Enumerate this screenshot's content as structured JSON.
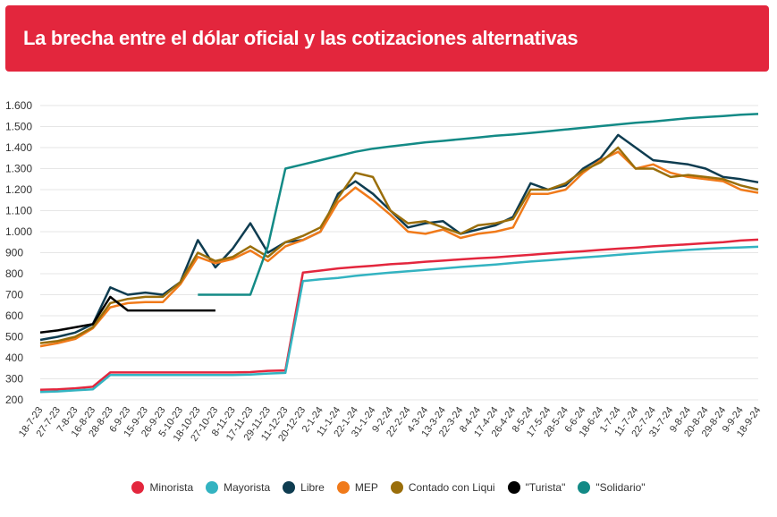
{
  "header": {
    "title": "La brecha entre el dólar oficial y las cotizaciones alternativas"
  },
  "chart_data": {
    "type": "line",
    "title": "La brecha entre el dólar oficial y las cotizaciones alternativas",
    "xlabel": "",
    "ylabel": "",
    "ylim": [
      200,
      1600
    ],
    "yticks": [
      200,
      300,
      400,
      500,
      600,
      700,
      800,
      900,
      1000,
      1100,
      1200,
      1300,
      1400,
      1500,
      1600
    ],
    "ytick_labels": [
      "200",
      "300",
      "400",
      "500",
      "600",
      "700",
      "800",
      "900",
      "1.000",
      "1.100",
      "1.200",
      "1.300",
      "1.400",
      "1.500",
      "1.600"
    ],
    "xtick_labels": [
      "18-7-23",
      "27-7-23",
      "7-8-23",
      "16-8-23",
      "28-8-23",
      "6-9-23",
      "15-9-23",
      "26-9-23",
      "5-10-23",
      "18-10-23",
      "27-10-23",
      "8-11-23",
      "17-11-23",
      "29-11-23",
      "11-12-23",
      "20-12-23",
      "2-1-24",
      "11-1-24",
      "22-1-24",
      "31-1-24",
      "9-2-24",
      "22-2-24",
      "4-3-24",
      "13-3-24",
      "22-3-24",
      "8-4-24",
      "17-4-24",
      "26-4-24",
      "8-5-24",
      "17-5-24",
      "28-5-24",
      "6-6-24",
      "18-6-24",
      "1-7-24",
      "11-7-24",
      "22-7-24",
      "31-7-24",
      "9-8-24",
      "20-8-24",
      "29-8-24",
      "9-9-24",
      "18-9-24"
    ],
    "grid": true,
    "legend_position": "bottom",
    "series": [
      {
        "name": "Minorista",
        "color": "#e3263d",
        "values": [
          248,
          250,
          255,
          262,
          330,
          330,
          330,
          330,
          330,
          330,
          330,
          330,
          332,
          338,
          340,
          805,
          815,
          825,
          832,
          838,
          845,
          850,
          857,
          862,
          868,
          873,
          878,
          884,
          890,
          896,
          902,
          907,
          913,
          919,
          924,
          930,
          935,
          940,
          945,
          950,
          958,
          962
        ]
      },
      {
        "name": "Mayorista",
        "color": "#33b3c1",
        "values": [
          237,
          240,
          245,
          250,
          318,
          318,
          318,
          318,
          318,
          318,
          318,
          318,
          320,
          325,
          328,
          765,
          773,
          780,
          790,
          798,
          805,
          812,
          818,
          825,
          832,
          838,
          844,
          851,
          858,
          864,
          870,
          877,
          883,
          890,
          896,
          902,
          908,
          913,
          918,
          922,
          925,
          928
        ]
      },
      {
        "name": "Libre",
        "color": "#0e3c50",
        "values": [
          485,
          500,
          520,
          560,
          735,
          700,
          710,
          700,
          760,
          960,
          830,
          920,
          1040,
          900,
          950,
          960,
          1000,
          1180,
          1240,
          1180,
          1100,
          1020,
          1040,
          1050,
          990,
          1010,
          1030,
          1070,
          1230,
          1200,
          1220,
          1300,
          1350,
          1460,
          1400,
          1340,
          1330,
          1320,
          1300,
          1260,
          1250,
          1235
        ]
      },
      {
        "name": "MEP",
        "color": "#f07a1a",
        "values": [
          455,
          470,
          490,
          540,
          640,
          660,
          665,
          665,
          750,
          880,
          850,
          870,
          910,
          860,
          930,
          960,
          1000,
          1140,
          1210,
          1150,
          1080,
          1000,
          990,
          1010,
          970,
          990,
          1000,
          1020,
          1180,
          1180,
          1200,
          1280,
          1340,
          1380,
          1300,
          1320,
          1280,
          1260,
          1250,
          1240,
          1200,
          1185
        ]
      },
      {
        "name": "Contado con Liqui",
        "color": "#9a6e0a",
        "values": [
          470,
          480,
          500,
          545,
          660,
          680,
          690,
          690,
          760,
          900,
          860,
          880,
          930,
          880,
          950,
          980,
          1020,
          1160,
          1280,
          1260,
          1100,
          1040,
          1050,
          1020,
          990,
          1030,
          1040,
          1060,
          1200,
          1200,
          1230,
          1290,
          1330,
          1400,
          1300,
          1300,
          1260,
          1270,
          1260,
          1250,
          1220,
          1200
        ]
      },
      {
        "name": "\"Turista\"",
        "color": "#000000",
        "values": [
          520,
          530,
          545,
          560,
          690,
          625,
          625,
          625,
          625,
          625,
          625,
          null,
          null,
          null,
          null,
          null,
          null,
          null,
          null,
          null,
          null,
          null,
          null,
          null,
          null,
          null,
          null,
          null,
          null,
          null,
          null,
          null,
          null,
          null,
          null,
          null,
          null,
          null,
          null,
          null,
          null,
          null
        ]
      },
      {
        "name": "\"Solidario\"",
        "color": "#138a86",
        "values": [
          null,
          null,
          null,
          null,
          null,
          null,
          null,
          null,
          null,
          700,
          700,
          700,
          700,
          930,
          1300,
          1320,
          1340,
          1360,
          1380,
          1395,
          1405,
          1415,
          1425,
          1432,
          1440,
          1448,
          1456,
          1462,
          1470,
          1478,
          1486,
          1494,
          1502,
          1510,
          1518,
          1524,
          1532,
          1540,
          1545,
          1550,
          1556,
          1560
        ]
      }
    ]
  }
}
